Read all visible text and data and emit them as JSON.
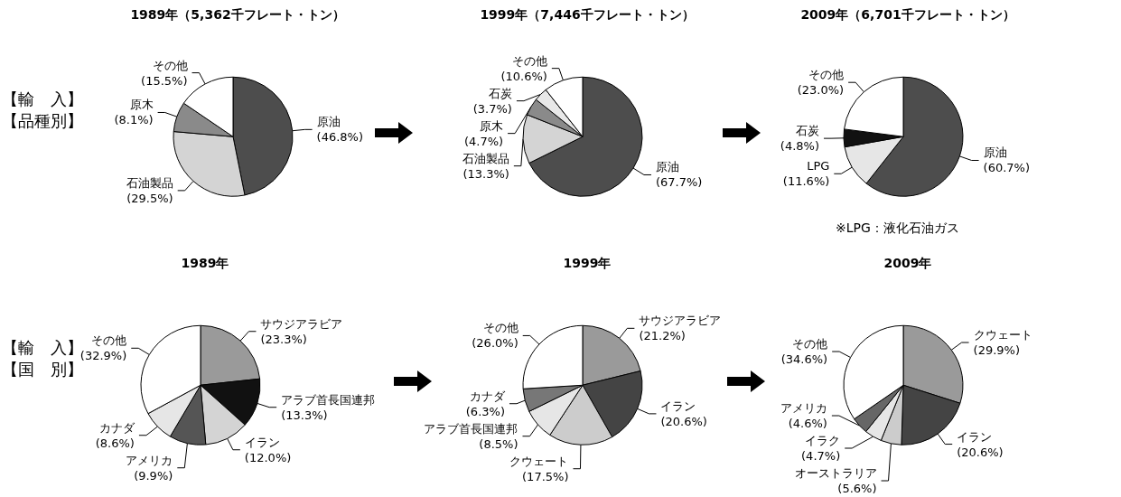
{
  "chart_data": [
    {
      "type": "pie",
      "title": "1989年（5,362千フレート・トン）",
      "annotations": [
        "【輸　入】",
        "【品種別】"
      ],
      "categories": [
        "原油",
        "石油製品",
        "原木",
        "その他"
      ],
      "values": [
        46.8,
        29.5,
        8.1,
        15.5
      ],
      "value_labels": [
        "(46.8%)",
        "(29.5%)",
        "(8.1%)",
        "(15.5%)"
      ],
      "colors": [
        "#4d4d4d",
        "#d4d4d4",
        "#8a8a8a",
        "#ffffff"
      ]
    },
    {
      "type": "pie",
      "title": "1999年（7,446千フレート・トン）",
      "categories": [
        "原油",
        "石油製品",
        "原木",
        "石炭",
        "その他"
      ],
      "values": [
        67.7,
        13.3,
        4.7,
        3.7,
        10.6
      ],
      "value_labels": [
        "(67.7%)",
        "(13.3%)",
        "(4.7%)",
        "(3.7%)",
        "(10.6%)"
      ],
      "colors": [
        "#4d4d4d",
        "#d4d4d4",
        "#8a8a8a",
        "#e8e8e8",
        "#ffffff"
      ]
    },
    {
      "type": "pie",
      "title": "2009年（6,701千フレート・トン）",
      "annotations": [
        "※LPG：液化石油ガス"
      ],
      "categories": [
        "原油",
        "LPG",
        "石炭",
        "その他"
      ],
      "values": [
        60.7,
        11.6,
        4.8,
        23.0
      ],
      "value_labels": [
        "(60.7%)",
        "(11.6%)",
        "(4.8%)",
        "(23.0%)"
      ],
      "colors": [
        "#4d4d4d",
        "#e6e6e6",
        "#111111",
        "#ffffff"
      ]
    },
    {
      "type": "pie",
      "title": "1989年",
      "annotations": [
        "【輸　入】",
        "【国　別】"
      ],
      "categories": [
        "サウジアラビア",
        "アラブ首長国連邦",
        "イラン",
        "アメリカ",
        "カナダ",
        "その他"
      ],
      "values": [
        23.3,
        13.3,
        12.0,
        9.9,
        8.6,
        32.9
      ],
      "value_labels": [
        "(23.3%)",
        "(13.3%)",
        "(12.0%)",
        "(9.9%)",
        "(8.6%)",
        "(32.9%)"
      ],
      "colors": [
        "#9a9a9a",
        "#111111",
        "#d4d4d4",
        "#555555",
        "#e6e6e6",
        "#ffffff"
      ]
    },
    {
      "type": "pie",
      "title": "1999年",
      "categories": [
        "サウジアラビア",
        "イラン",
        "クウェート",
        "アラブ首長国連邦",
        "カナダ",
        "その他"
      ],
      "values": [
        21.2,
        20.6,
        17.5,
        8.5,
        6.3,
        26.0
      ],
      "value_labels": [
        "(21.2%)",
        "(20.6%)",
        "(17.5%)",
        "(8.5%)",
        "(6.3%)",
        "(26.0%)"
      ],
      "colors": [
        "#9a9a9a",
        "#444444",
        "#cccccc",
        "#e6e6e6",
        "#777777",
        "#ffffff"
      ]
    },
    {
      "type": "pie",
      "title": "2009年",
      "categories": [
        "クウェート",
        "イラン",
        "オーストラリア",
        "イラク",
        "アメリカ",
        "その他"
      ],
      "values": [
        29.9,
        20.6,
        5.6,
        4.7,
        4.6,
        34.6
      ],
      "value_labels": [
        "(29.9%)",
        "(20.6%)",
        "(5.6%)",
        "(4.7%)",
        "(4.6%)",
        "(34.6%)"
      ],
      "colors": [
        "#9a9a9a",
        "#444444",
        "#cccccc",
        "#e6e6e6",
        "#666666",
        "#ffffff"
      ]
    }
  ]
}
